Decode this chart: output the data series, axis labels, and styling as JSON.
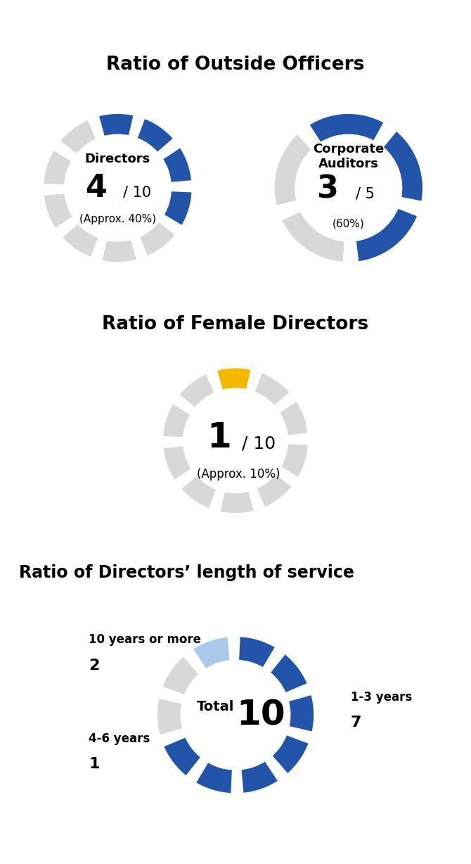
{
  "title1": "Ratio of Outside Officers",
  "title2": "Ratio of Female Directors",
  "title3": "Ratio of Directors’ length of service",
  "bg_color": "#ffffff",
  "blue": "#2255aa",
  "light_blue": "#aac8e8",
  "gray": "#d8d8d8",
  "yellow": "#f5b800",
  "donut1": {
    "label_top": "Directors",
    "numerator": "4",
    "denominator": "/ 10",
    "percent": "(Approx. 40%)",
    "filled": 4,
    "total": 10,
    "color": "#2255aa"
  },
  "donut2": {
    "label_top": "Corporate\nAuditors",
    "numerator": "3",
    "denominator": "/ 5",
    "percent": "(60%)",
    "filled": 3,
    "total": 5,
    "color": "#2255aa"
  },
  "donut3": {
    "numerator": "1",
    "denominator": "/ 10",
    "percent": "(Approx. 10%)",
    "filled": 1,
    "total": 10,
    "color": "#f5b800"
  },
  "donut4": {
    "center_text1": "Total",
    "center_text2": "10",
    "segments": [
      {
        "label_line1": "1-3 years",
        "label_line2": "7",
        "value": 7,
        "color": "#2255aa",
        "side": "right"
      },
      {
        "label_line1": "10 years or more",
        "label_line2": "2",
        "value": 2,
        "color": "#d8d8d8",
        "side": "left"
      },
      {
        "label_line1": "4-6 years",
        "label_line2": "1",
        "value": 1,
        "color": "#aac8e8",
        "side": "left"
      }
    ],
    "total": 10
  }
}
